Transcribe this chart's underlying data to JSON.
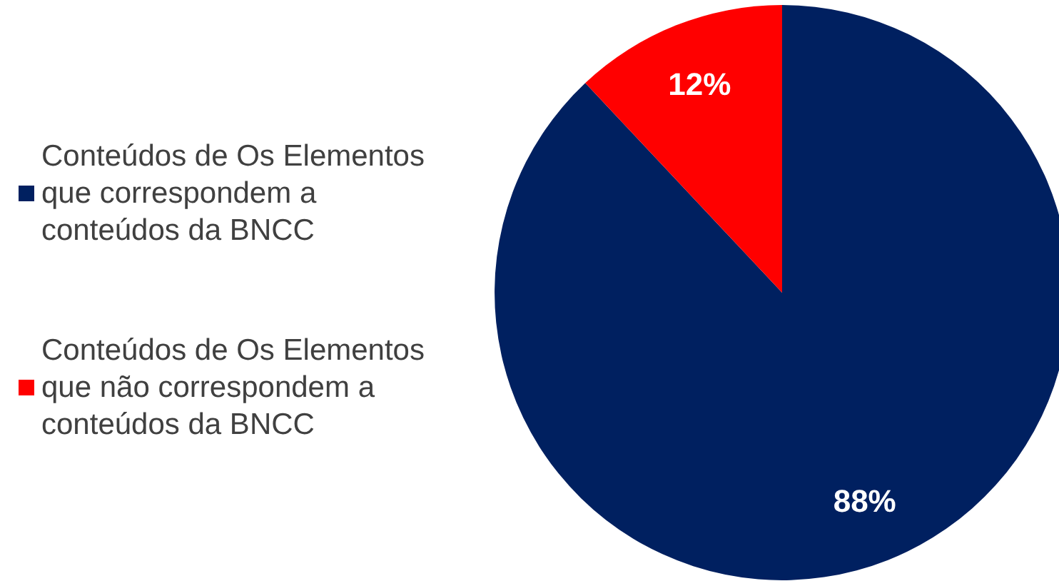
{
  "chart_data": {
    "type": "pie",
    "categories": [
      "Conteúdos de Os Elementos que correspondem a conteúdos da BNCC",
      "Conteúdos de Os Elementos que não correspondem a conteúdos da BNCC"
    ],
    "values": [
      88,
      12
    ],
    "colors": [
      "#002060",
      "#ff0000"
    ],
    "value_labels": [
      "88%",
      "12%"
    ],
    "legend": "left"
  }
}
